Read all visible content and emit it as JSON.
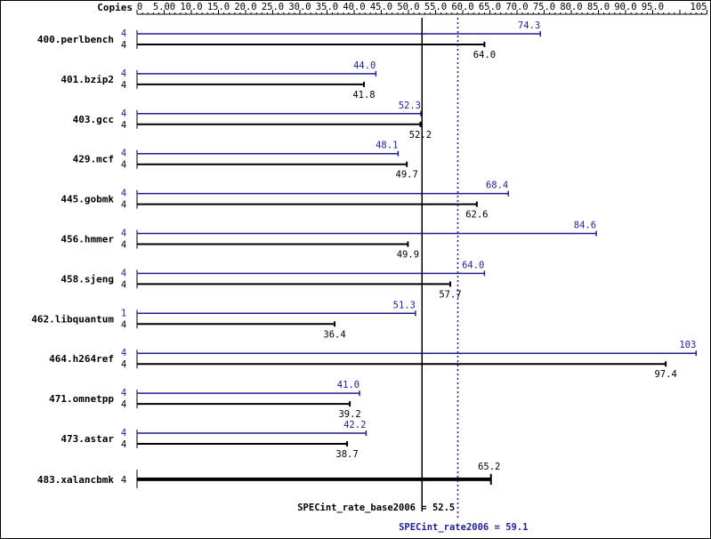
{
  "chart_data": {
    "type": "bar",
    "orientation": "horizontal",
    "header_label": "Copies",
    "xlim": [
      0,
      105
    ],
    "tick_labels": [
      "0",
      "5.00",
      "10.0",
      "15.0",
      "20.0",
      "25.0",
      "30.0",
      "35.0",
      "40.0",
      "45.0",
      "50.0",
      "55.0",
      "60.0",
      "65.0",
      "70.0",
      "75.0",
      "80.0",
      "85.0",
      "90.0",
      "95.0",
      "105"
    ],
    "tick_values": [
      0,
      5,
      10,
      15,
      20,
      25,
      30,
      35,
      40,
      45,
      50,
      55,
      60,
      65,
      70,
      75,
      80,
      85,
      90,
      95,
      105
    ],
    "colors": {
      "peak": "#1f1f8f",
      "base": "#000000"
    },
    "categories": [
      "400.perlbench",
      "401.bzip2",
      "403.gcc",
      "429.mcf",
      "445.gobmk",
      "456.hmmer",
      "458.sjeng",
      "462.libquantum",
      "464.h264ref",
      "471.omnetpp",
      "473.astar",
      "483.xalancbmk"
    ],
    "series": [
      {
        "key": "peak",
        "copies": [
          "4",
          "4",
          "4",
          "4",
          "4",
          "4",
          "4",
          "1",
          "4",
          "4",
          "4",
          null
        ],
        "values": [
          74.3,
          44.0,
          52.3,
          48.1,
          68.4,
          84.6,
          64.0,
          51.3,
          103,
          41.0,
          42.2,
          null
        ],
        "labels": [
          "74.3",
          "44.0",
          "52.3",
          "48.1",
          "68.4",
          "84.6",
          "64.0",
          "51.3",
          "103",
          "41.0",
          "42.2",
          null
        ]
      },
      {
        "key": "base",
        "copies": [
          "4",
          "4",
          "4",
          "4",
          "4",
          "4",
          "4",
          "4",
          "4",
          "4",
          "4",
          "4"
        ],
        "values": [
          64.0,
          41.8,
          52.2,
          49.7,
          62.6,
          49.9,
          57.7,
          36.4,
          97.4,
          39.2,
          38.7,
          65.2
        ],
        "labels": [
          "64.0",
          "41.8",
          "52.2",
          "49.7",
          "62.6",
          "49.9",
          "57.7",
          "36.4",
          "97.4",
          "39.2",
          "38.7",
          "65.2"
        ]
      }
    ],
    "reference_lines": [
      {
        "key": "base",
        "value": 52.5,
        "label": "SPECint_rate_base2006 = 52.5",
        "style": "solid"
      },
      {
        "key": "peak",
        "value": 59.1,
        "label": "SPECint_rate2006 = 59.1",
        "style": "dotted"
      }
    ]
  }
}
